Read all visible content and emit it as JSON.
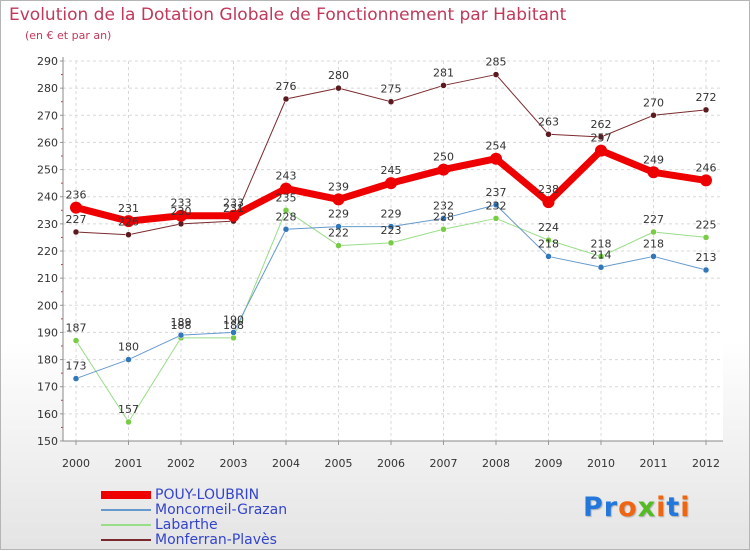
{
  "header": {
    "title": "Evolution de la Dotation Globale de Fonctionnement par Habitant",
    "subtitle": "(en € et par an)"
  },
  "logo": {
    "text": "Proxiti",
    "colors": [
      "#2277dd",
      "#2277dd",
      "#ee6611",
      "#55bb22",
      "#ee6611",
      "#2277dd",
      "#ee6611"
    ]
  },
  "chart_data": {
    "type": "line",
    "title": "Evolution de la Dotation Globale de Fonctionnement par Habitant",
    "subtitle": "(en € et par an)",
    "xlabel": "",
    "ylabel": "",
    "ylim": [
      150,
      290
    ],
    "yticks": [
      150,
      160,
      170,
      180,
      190,
      200,
      210,
      220,
      230,
      240,
      250,
      260,
      270,
      280,
      290
    ],
    "grid": true,
    "legend_position": "bottom-left",
    "categories": [
      "2000",
      "2001",
      "2002",
      "2003",
      "2004",
      "2005",
      "2006",
      "2007",
      "2008",
      "2009",
      "2010",
      "2011",
      "2012"
    ],
    "series": [
      {
        "name": "Monferran-Plavès",
        "color": "#7a2a2e",
        "marker": "#5a1a1e",
        "width": 1,
        "radius": 3,
        "values": [
          227,
          226,
          230,
          231,
          276,
          280,
          275,
          281,
          285,
          263,
          262,
          270,
          272
        ]
      },
      {
        "name": "Labarthe",
        "color": "#99dd88",
        "marker": "#77cc44",
        "width": 1,
        "radius": 3,
        "values": [
          187,
          157,
          188,
          188,
          235,
          222,
          223,
          228,
          232,
          224,
          218,
          227,
          225
        ]
      },
      {
        "name": "Moncorneil-Grazan",
        "color": "#6699cc",
        "marker": "#3377bb",
        "width": 1,
        "radius": 3,
        "values": [
          173,
          180,
          189,
          190,
          228,
          229,
          229,
          232,
          237,
          218,
          214,
          218,
          213
        ]
      },
      {
        "name": "POUY-LOUBRIN",
        "color": "#ee0000",
        "marker": "#ee0000",
        "width": 7,
        "radius": 6,
        "values": [
          236,
          231,
          233,
          233,
          243,
          239,
          245,
          250,
          254,
          238,
          257,
          249,
          246
        ]
      }
    ],
    "legend": [
      "POUY-LOUBRIN",
      "Moncorneil-Grazan",
      "Labarthe",
      "Monferran-Plavès"
    ]
  }
}
